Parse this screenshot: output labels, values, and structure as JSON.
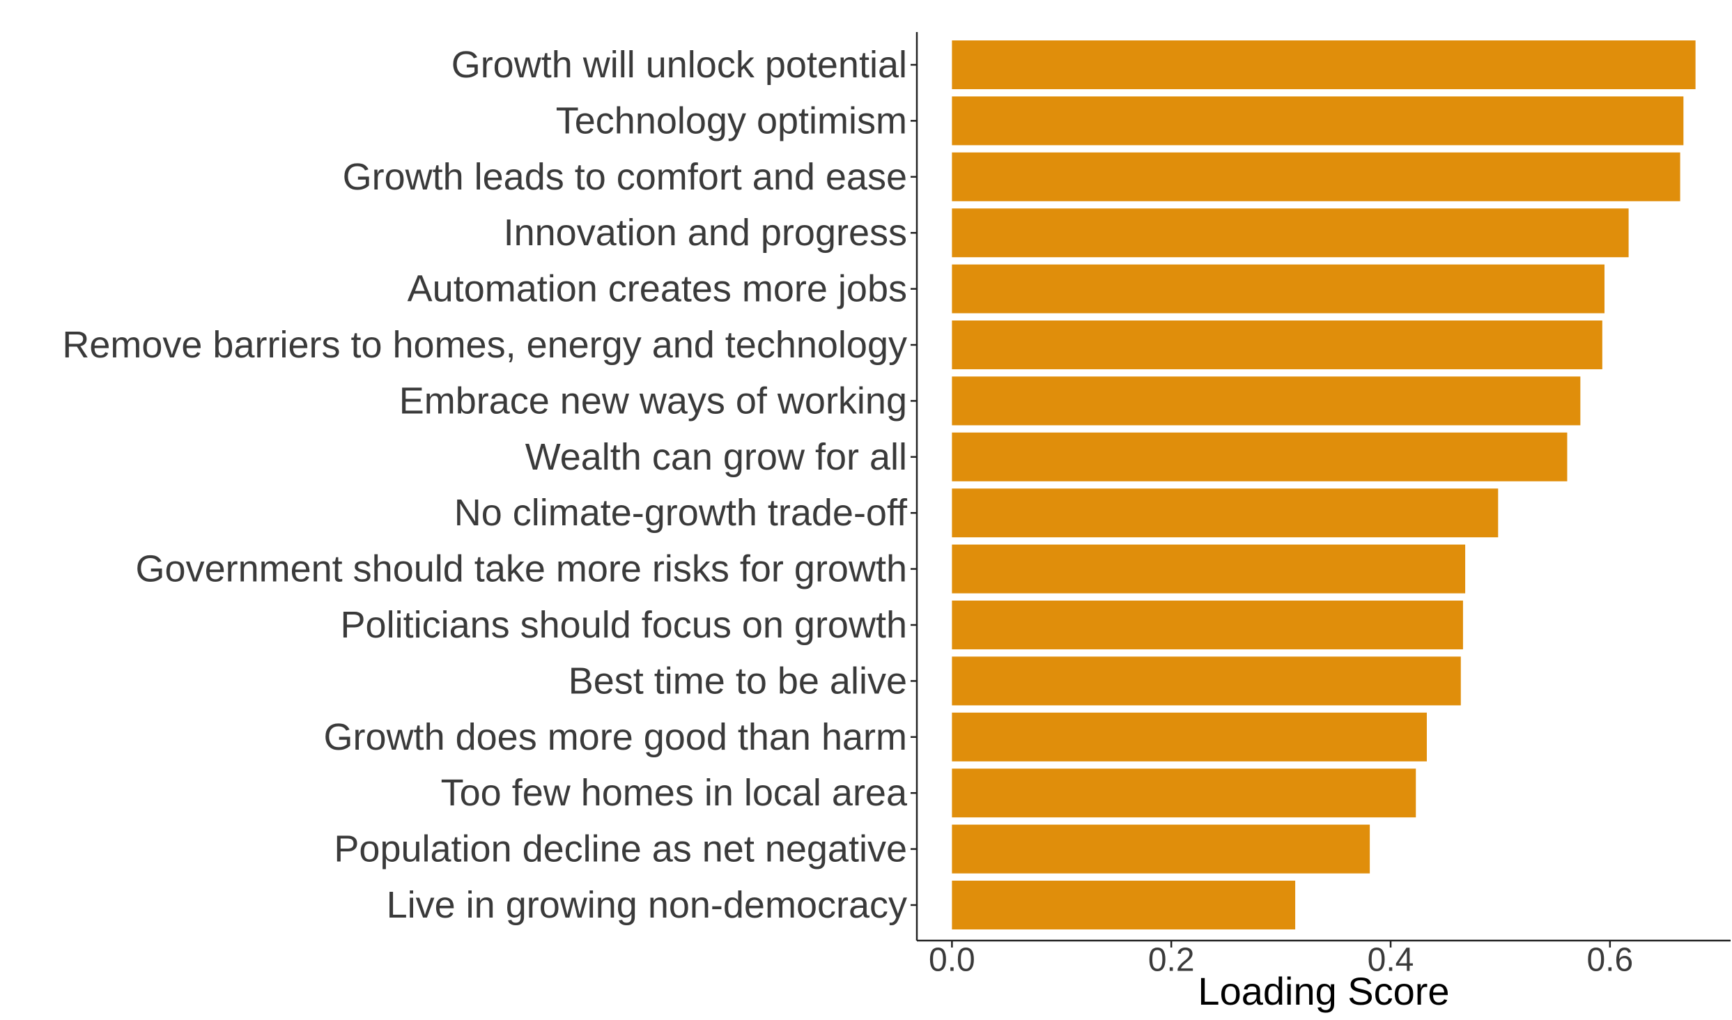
{
  "chart_data": {
    "type": "bar",
    "orientation": "horizontal",
    "categories": [
      "Growth will unlock potential",
      "Technology optimism",
      "Growth leads to comfort and ease",
      "Innovation and progress",
      "Automation creates more jobs",
      "Remove barriers to homes, energy and technology",
      "Embrace new ways of working",
      "Wealth can grow for all",
      "No climate-growth trade-off",
      "Government should take more risks for growth",
      "Politicians should focus on growth",
      "Best time to be alive",
      "Growth does more good than harm",
      "Too few homes in local area",
      "Population decline as net negative",
      "Live in growing non-democracy"
    ],
    "values": [
      0.678,
      0.667,
      0.664,
      0.617,
      0.595,
      0.593,
      0.573,
      0.561,
      0.498,
      0.468,
      0.466,
      0.464,
      0.433,
      0.423,
      0.381,
      0.313
    ],
    "xlabel": "Loading Score",
    "ylabel": "",
    "title": "",
    "xlim": [
      -0.032,
      0.71
    ],
    "x_ticks": [
      0.0,
      0.2,
      0.4,
      0.6
    ],
    "x_tick_labels": [
      "0.0",
      "0.2",
      "0.4",
      "0.6"
    ],
    "grid": false,
    "bar_color": "#E08E0B"
  }
}
